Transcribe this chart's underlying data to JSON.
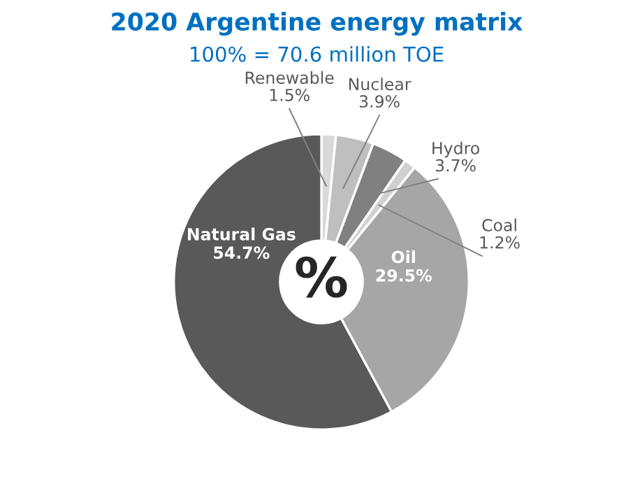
{
  "chart_data": {
    "type": "donut",
    "title": "2020 Argentine energy matrix",
    "subtitle": "100% = 70.6 million TOE",
    "categories": [
      "Renewable",
      "Nuclear",
      "Hydro",
      "Coal",
      "Oil",
      "Natural Gas"
    ],
    "values": [
      1.5,
      3.9,
      3.7,
      1.2,
      29.5,
      54.7
    ],
    "value_labels": [
      "1.5%",
      "3.9%",
      "3.7%",
      "1.2%",
      "29.5%",
      "54.7%"
    ],
    "colors": [
      "#d9d9d9",
      "#bfbfbf",
      "#808080",
      "#d0d0d0",
      "#a6a6a6",
      "#595959"
    ],
    "annotations": [
      "%"
    ],
    "legend": false
  }
}
